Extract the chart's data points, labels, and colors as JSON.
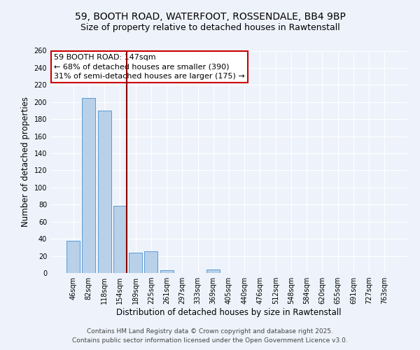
{
  "title_line1": "59, BOOTH ROAD, WATERFOOT, ROSSENDALE, BB4 9BP",
  "title_line2": "Size of property relative to detached houses in Rawtenstall",
  "xlabel": "Distribution of detached houses by size in Rawtenstall",
  "ylabel": "Number of detached properties",
  "categories": [
    "46sqm",
    "82sqm",
    "118sqm",
    "154sqm",
    "189sqm",
    "225sqm",
    "261sqm",
    "297sqm",
    "333sqm",
    "369sqm",
    "405sqm",
    "440sqm",
    "476sqm",
    "512sqm",
    "548sqm",
    "584sqm",
    "620sqm",
    "655sqm",
    "691sqm",
    "727sqm",
    "763sqm"
  ],
  "values": [
    38,
    205,
    190,
    79,
    24,
    25,
    3,
    0,
    0,
    4,
    0,
    0,
    0,
    0,
    0,
    0,
    0,
    0,
    0,
    0,
    0
  ],
  "bar_color": "#b8d0e8",
  "bar_edge_color": "#5b9bd5",
  "vline_color": "#8b0000",
  "annotation_box_text": "59 BOOTH ROAD: 147sqm\n← 68% of detached houses are smaller (390)\n31% of semi-detached houses are larger (175) →",
  "ylim": [
    0,
    260
  ],
  "yticks": [
    0,
    20,
    40,
    60,
    80,
    100,
    120,
    140,
    160,
    180,
    200,
    220,
    240,
    260
  ],
  "bg_color": "#eef3fb",
  "plot_bg_color": "#eef3fb",
  "footer_line1": "Contains HM Land Registry data © Crown copyright and database right 2025.",
  "footer_line2": "Contains public sector information licensed under the Open Government Licence v3.0.",
  "title_fontsize": 10,
  "subtitle_fontsize": 9,
  "axis_label_fontsize": 8.5,
  "tick_fontsize": 7,
  "annotation_fontsize": 8,
  "footer_fontsize": 6.5
}
